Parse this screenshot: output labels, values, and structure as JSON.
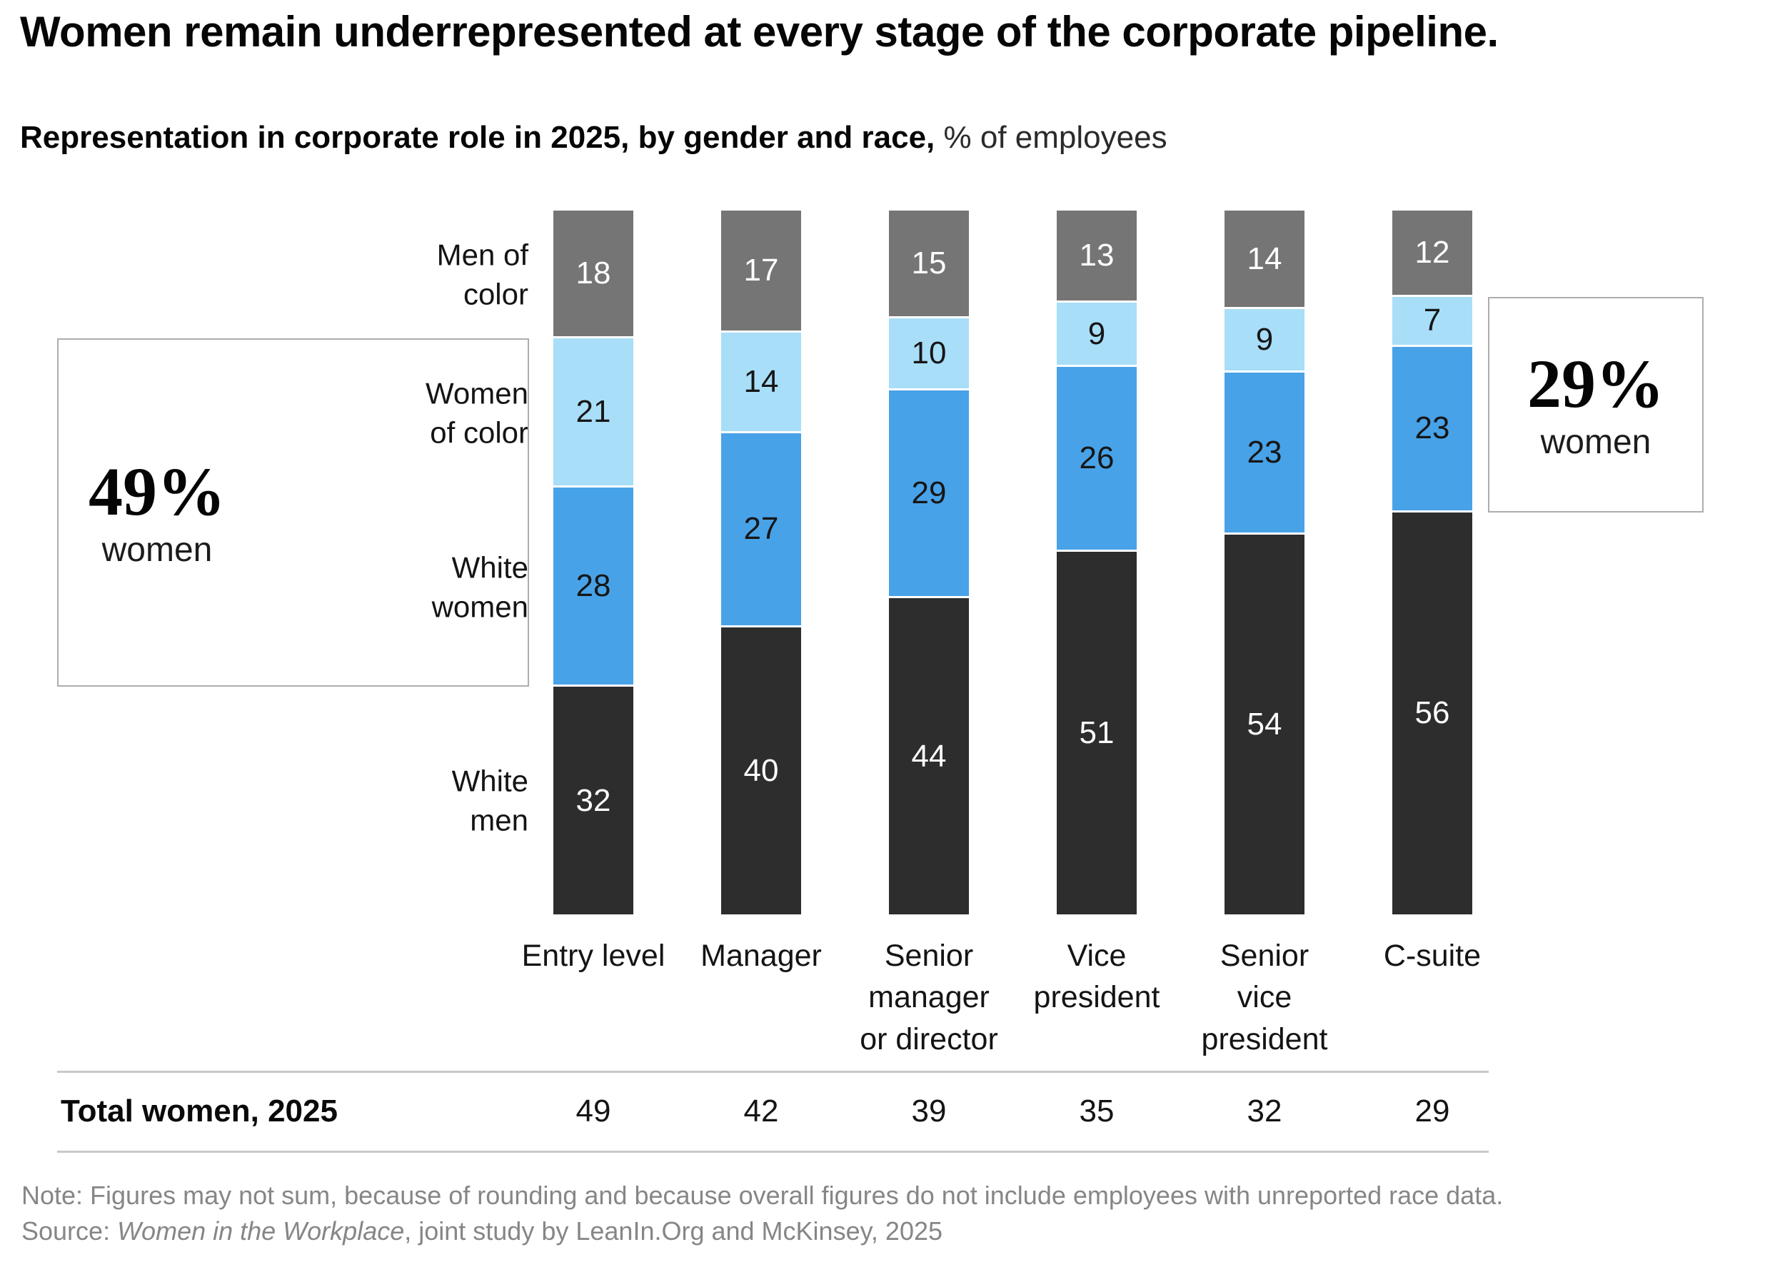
{
  "header": {
    "title": "Women remain underrepresented at every stage of the corporate pipeline.",
    "subtitle_bold": "Representation in corporate role in 2025, by gender and race,",
    "subtitle_regular": " % of employees"
  },
  "chart_data": {
    "type": "bar",
    "stacked": true,
    "orientation": "vertical",
    "unit": "% of employees",
    "grid": false,
    "legend_position": "left-of-first-bar",
    "categories": [
      "Entry level",
      "Manager",
      "Senior manager or director",
      "Vice president",
      "Senior vice president",
      "C-suite"
    ],
    "category_display_lines": [
      "Entry level",
      "Manager",
      "Senior\nmanager\nor director",
      "Vice\npresident",
      "Senior\nvice\npresident",
      "C-suite"
    ],
    "series": [
      {
        "name": "Men of color",
        "display": "Men of\ncolor",
        "color": "#757575",
        "value_text_color": "#ffffff",
        "values": [
          18,
          17,
          15,
          13,
          14,
          12
        ]
      },
      {
        "name": "Women of color",
        "display": "Women\nof color",
        "color": "#A8DEF8",
        "value_text_color": "#161616",
        "values": [
          21,
          14,
          10,
          9,
          9,
          7
        ]
      },
      {
        "name": "White women",
        "display": "White\nwomen",
        "color": "#48A2E8",
        "value_text_color": "#161616",
        "values": [
          28,
          27,
          29,
          26,
          23,
          23
        ]
      },
      {
        "name": "White men",
        "display": "White\nmen",
        "color": "#2D2D2D",
        "value_text_color": "#ffffff",
        "values": [
          32,
          40,
          44,
          51,
          54,
          56
        ]
      }
    ],
    "totals_row": {
      "label": "Total women, 2025",
      "values": [
        49,
        42,
        39,
        35,
        32,
        29
      ]
    },
    "annotations": {
      "left": {
        "value": "49%",
        "label": "women"
      },
      "right": {
        "value": "29%",
        "label": "women"
      }
    }
  },
  "footnotes": {
    "note": "Note: Figures may not sum, because of rounding and because overall figures do not include employees with unreported race data.",
    "source_prefix": "Source: ",
    "source_italic": "Women in the Workplace",
    "source_suffix": ", joint study by LeanIn.Org and McKinsey, 2025"
  }
}
